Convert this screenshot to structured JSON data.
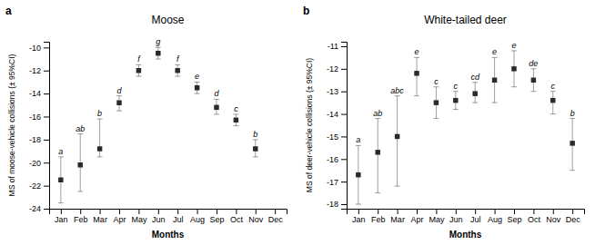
{
  "chart_data": [
    {
      "type": "point",
      "title": "Moose",
      "panel_label": "a",
      "x_label": "Months",
      "y_label": "MS of moose-vehicle collisions (± 95%CI)",
      "categories": [
        "Jan",
        "Feb",
        "Mar",
        "Apr",
        "May",
        "Jun",
        "Jul",
        "Aug",
        "Sep",
        "Oct",
        "Nov",
        "Dec"
      ],
      "values": [
        -21.5,
        -20.2,
        -18.8,
        -14.8,
        -12.0,
        -10.5,
        -12.0,
        -13.5,
        -15.2,
        -16.3,
        -18.8,
        null
      ],
      "ci_lo": [
        -23.5,
        -22.5,
        -19.5,
        -15.5,
        -12.5,
        -11.0,
        -12.5,
        -14.0,
        -15.8,
        -16.8,
        -19.5,
        null
      ],
      "ci_hi": [
        -19.5,
        -17.5,
        -16.2,
        -14.2,
        -11.5,
        -10.0,
        -11.5,
        -13.0,
        -14.5,
        -15.8,
        -18.0,
        null
      ],
      "letters": [
        "a",
        "ab",
        "b",
        "d",
        "f",
        "g",
        "f",
        "e",
        "d",
        "c",
        "b",
        null
      ],
      "color": "#2a2a2a",
      "marker": "square",
      "ylim": [
        -24,
        -9.5
      ],
      "yticks": [
        -24,
        -22,
        -20,
        -18,
        -16,
        -14,
        -12,
        -10
      ],
      "grid": false
    },
    {
      "type": "point",
      "title": "White-tailed deer",
      "panel_label": "b",
      "x_label": "Months",
      "y_label": "MS of deer-vehicle collisions (± 95%CI)",
      "categories": [
        "Jan",
        "Feb",
        "Mar",
        "Apr",
        "May",
        "Jun",
        "Jul",
        "Aug",
        "Sep",
        "Oct",
        "Nov",
        "Dec"
      ],
      "values": [
        -16.7,
        -15.7,
        -15.0,
        -12.2,
        -13.5,
        -13.4,
        -13.1,
        -12.5,
        -12.0,
        -12.5,
        -13.4,
        -15.3
      ],
      "ci_lo": [
        -18.0,
        -17.5,
        -17.2,
        -13.2,
        -14.2,
        -13.8,
        -13.5,
        -13.5,
        -12.8,
        -13.0,
        -14.0,
        -16.5
      ],
      "ci_hi": [
        -15.4,
        -14.2,
        -13.2,
        -11.5,
        -12.8,
        -13.0,
        -12.6,
        -11.5,
        -11.2,
        -12.0,
        -13.0,
        -14.2
      ],
      "letters": [
        "a",
        "ab",
        "abc",
        "e",
        "c",
        "c",
        "cd",
        "e",
        "e",
        "de",
        "c",
        "b"
      ],
      "color": "#2a2a2a",
      "marker": "square",
      "ylim": [
        -18.2,
        -10.8
      ],
      "yticks": [
        -18,
        -17,
        -16,
        -15,
        -14,
        -13,
        -12,
        -11
      ],
      "grid": false
    }
  ]
}
